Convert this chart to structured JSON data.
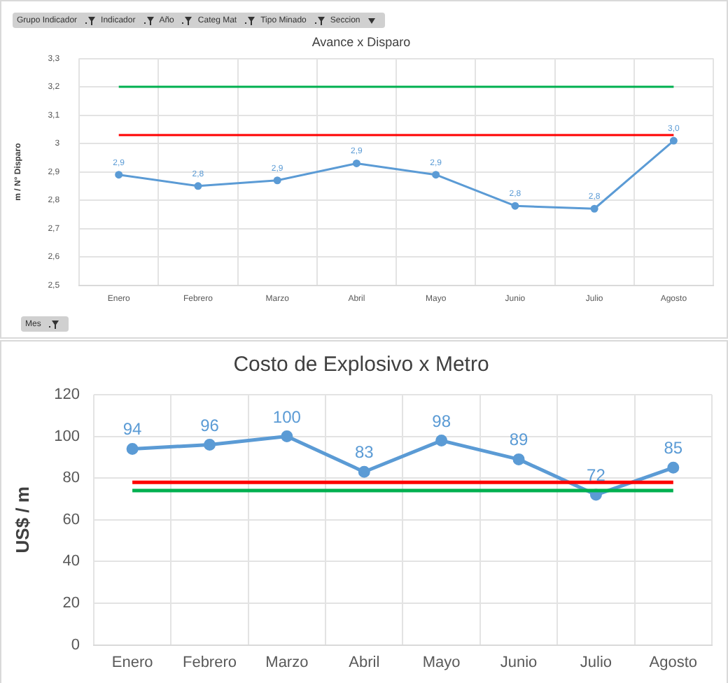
{
  "chart_data": [
    {
      "type": "line",
      "title": "Avance x Disparo",
      "ylabel": "m / N° Disparo",
      "categories": [
        "Enero",
        "Febrero",
        "Marzo",
        "Abril",
        "Mayo",
        "Junio",
        "Julio",
        "Agosto"
      ],
      "series": [
        {
          "color": "#5b9bd5",
          "values": [
            2.89,
            2.85,
            2.87,
            2.93,
            2.89,
            2.78,
            2.77,
            3.01
          ],
          "value_labels": [
            "2,9",
            "2,8",
            "2,9",
            "2,9",
            "2,9",
            "2,8",
            "2,8",
            "3,0"
          ]
        }
      ],
      "ylim": [
        2.5,
        3.3
      ],
      "yticks": [
        {
          "value": 2.5,
          "label": "2,5"
        },
        {
          "value": 2.6,
          "label": "2,6"
        },
        {
          "value": 2.7,
          "label": "2,7"
        },
        {
          "value": 2.8,
          "label": "2,8"
        },
        {
          "value": 2.9,
          "label": "2,9"
        },
        3,
        {
          "value": 3.1,
          "label": "3,1"
        },
        {
          "value": 3.2,
          "label": "3,2"
        },
        {
          "value": 3.3,
          "label": "3,3"
        }
      ],
      "ref_lines": [
        {
          "axis": "y",
          "value": 3.2,
          "color": "#00b050"
        },
        {
          "axis": "y",
          "value": 3.03,
          "color": "#ff0000"
        }
      ],
      "annotations": [
        "Grupo Indicador",
        "Indicador",
        "Año",
        "Categ Mat",
        "Tipo Minado",
        "Seccion",
        "Mes"
      ],
      "grid": true,
      "legend": false,
      "marker": "circle",
      "line_style": "solid"
    },
    {
      "type": "line",
      "title": "Costo de Explosivo x Metro",
      "ylabel": "US$ / m",
      "categories": [
        "Enero",
        "Febrero",
        "Marzo",
        "Abril",
        "Mayo",
        "Junio",
        "Julio",
        "Agosto"
      ],
      "series": [
        {
          "color": "#5b9bd5",
          "values": [
            94,
            96,
            100,
            83,
            98,
            89,
            72,
            85
          ]
        }
      ],
      "ylim": [
        0,
        120
      ],
      "yticks": [
        0,
        20,
        40,
        60,
        80,
        100,
        120
      ],
      "ref_lines": [
        {
          "axis": "y",
          "value": 78,
          "color": "#ff0000"
        },
        {
          "axis": "y",
          "value": 74,
          "color": "#00b050"
        }
      ],
      "data_labels": true,
      "grid": true,
      "legend": false,
      "marker": "circle",
      "line_style": "solid"
    }
  ]
}
